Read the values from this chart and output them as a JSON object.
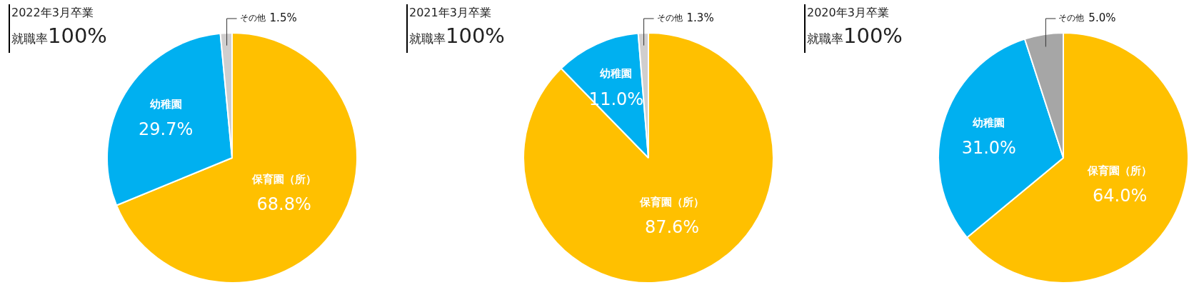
{
  "chart_data": [
    {
      "type": "pie",
      "title": "2022年3月卒業",
      "subtitle": "就職率100%",
      "categories": [
        "保育園（所）",
        "幼稚園",
        "その他"
      ],
      "values": [
        68.8,
        29.7,
        1.5
      ],
      "value_labels": [
        "68.8%",
        "29.7%",
        "1.5%"
      ],
      "colors": [
        "#ffc000",
        "#00b0f0",
        "#d0cece"
      ]
    },
    {
      "type": "pie",
      "title": "2021年3月卒業",
      "subtitle": "就職率100%",
      "categories": [
        "保育園（所）",
        "幼稚園",
        "その他"
      ],
      "values": [
        87.6,
        11.0,
        1.3
      ],
      "value_labels": [
        "87.6%",
        "11.0%",
        "1.3%"
      ],
      "colors": [
        "#ffc000",
        "#00b0f0",
        "#d0cece"
      ]
    },
    {
      "type": "pie",
      "title": "2020年3月卒業",
      "subtitle": "就職率100%",
      "categories": [
        "保育園（所）",
        "幼稚園",
        "その他"
      ],
      "values": [
        64.0,
        31.0,
        5.0
      ],
      "value_labels": [
        "64.0%",
        "31.0%",
        "5.0%"
      ],
      "colors": [
        "#ffc000",
        "#00b0f0",
        "#a6a6a6"
      ]
    }
  ]
}
